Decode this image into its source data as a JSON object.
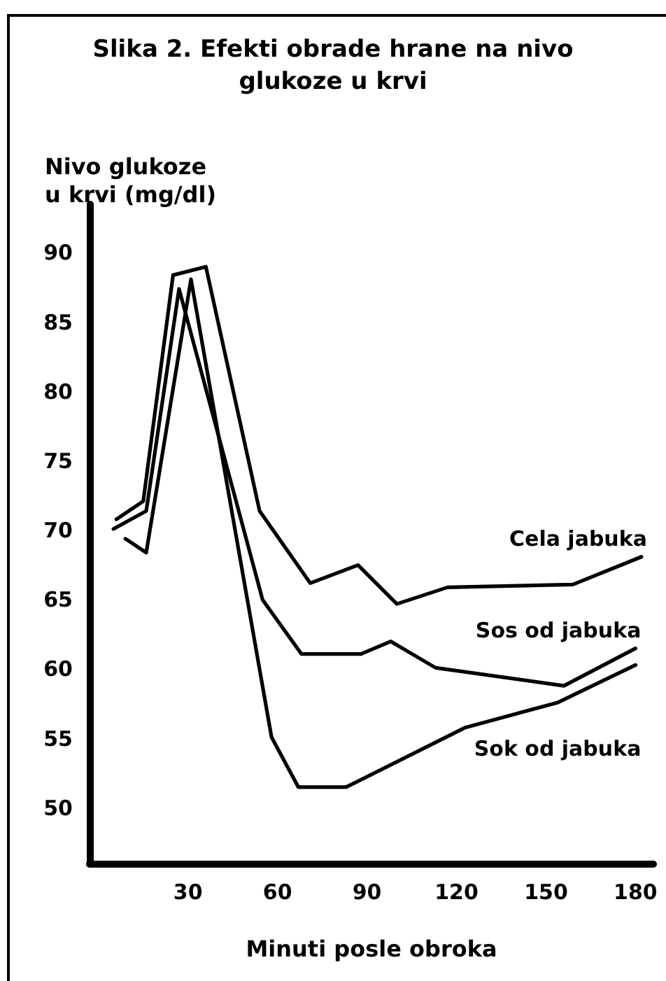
{
  "chart_data": {
    "type": "line",
    "title": "Slika 2. Efekti obrade hrane na nivo glukoze u krvi",
    "xlabel": "Minuti posle obroka",
    "ylabel": "Nivo glukoze u krvi (mg/dl)",
    "xlim": [
      -3,
      186
    ],
    "xticks": [
      30,
      60,
      90,
      120,
      150,
      180
    ],
    "ylim": [
      46,
      93.5
    ],
    "yticks": [
      50,
      55,
      60,
      65,
      70,
      75,
      80,
      85,
      90
    ],
    "marker": "none",
    "line_style": "solid",
    "series": [
      {
        "name": "Cela jabuka",
        "color": "#000000",
        "x": [
          6,
          15,
          25,
          36,
          54,
          71,
          87,
          100,
          117,
          159,
          182
        ],
        "values": [
          70.8,
          72.1,
          88.4,
          89.0,
          71.4,
          66.2,
          67.5,
          64.7,
          65.9,
          66.1,
          68.1
        ]
      },
      {
        "name": "Sos od jabuka",
        "color": "#000000",
        "x": [
          5,
          16,
          27,
          55,
          68,
          88,
          98,
          113,
          156,
          180
        ],
        "values": [
          70.1,
          71.4,
          87.4,
          65.0,
          61.1,
          61.1,
          62.0,
          60.1,
          58.8,
          61.5
        ]
      },
      {
        "name": "Sok od jabuka",
        "color": "#000000",
        "x": [
          9,
          16,
          31,
          58,
          67,
          83,
          123,
          154,
          180
        ],
        "values": [
          69.4,
          68.4,
          88.1,
          55.1,
          51.5,
          51.5,
          55.8,
          57.6,
          60.3
        ]
      }
    ]
  }
}
